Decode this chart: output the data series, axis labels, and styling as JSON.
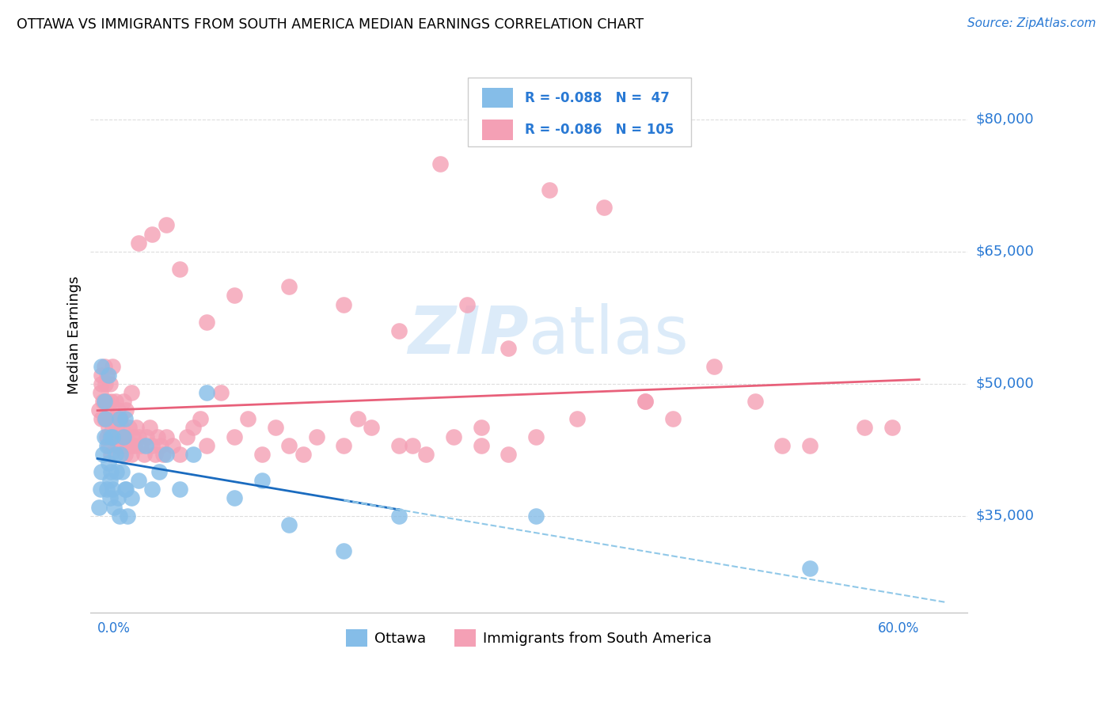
{
  "title": "OTTAWA VS IMMIGRANTS FROM SOUTH AMERICA MEDIAN EARNINGS CORRELATION CHART",
  "source": "Source: ZipAtlas.com",
  "ylabel": "Median Earnings",
  "yticks": [
    35000,
    50000,
    65000,
    80000
  ],
  "ytick_labels": [
    "$35,000",
    "$50,000",
    "$65,000",
    "$80,000"
  ],
  "legend_ottawa_R": "-0.088",
  "legend_ottawa_N": 47,
  "legend_immigrants_R": "-0.086",
  "legend_immigrants_N": 105,
  "ottawa_color": "#85bde8",
  "immigrants_color": "#f4a0b5",
  "ottawa_line_color": "#1a6bbf",
  "immigrants_line_color": "#e8607a",
  "dashed_line_color": "#90c8e8",
  "axis_label_color": "#2979d4",
  "grid_color": "#dddddd",
  "ottawa_x": [
    0.001,
    0.002,
    0.003,
    0.004,
    0.005,
    0.006,
    0.007,
    0.007,
    0.008,
    0.009,
    0.009,
    0.01,
    0.01,
    0.011,
    0.012,
    0.013,
    0.014,
    0.015,
    0.016,
    0.017,
    0.018,
    0.019,
    0.02,
    0.021,
    0.022,
    0.025,
    0.03,
    0.035,
    0.04,
    0.045,
    0.05,
    0.06,
    0.07,
    0.08,
    0.1,
    0.12,
    0.14,
    0.18,
    0.22,
    0.32,
    0.003,
    0.005,
    0.008,
    0.011,
    0.016,
    0.02,
    0.52
  ],
  "ottawa_y": [
    36000,
    38000,
    40000,
    42000,
    44000,
    46000,
    38000,
    43000,
    41000,
    39000,
    37000,
    44000,
    40000,
    38000,
    36000,
    42000,
    40000,
    37000,
    35000,
    42000,
    40000,
    44000,
    46000,
    38000,
    35000,
    37000,
    39000,
    43000,
    38000,
    40000,
    42000,
    38000,
    42000,
    49000,
    37000,
    39000,
    34000,
    31000,
    35000,
    35000,
    52000,
    48000,
    51000,
    44000,
    46000,
    38000,
    29000
  ],
  "immigrants_x": [
    0.001,
    0.002,
    0.003,
    0.003,
    0.004,
    0.005,
    0.005,
    0.006,
    0.007,
    0.007,
    0.008,
    0.008,
    0.009,
    0.009,
    0.01,
    0.01,
    0.011,
    0.012,
    0.013,
    0.014,
    0.015,
    0.016,
    0.017,
    0.018,
    0.019,
    0.02,
    0.021,
    0.022,
    0.023,
    0.024,
    0.025,
    0.026,
    0.027,
    0.028,
    0.03,
    0.032,
    0.034,
    0.036,
    0.038,
    0.04,
    0.042,
    0.044,
    0.046,
    0.048,
    0.05,
    0.055,
    0.06,
    0.065,
    0.07,
    0.075,
    0.08,
    0.09,
    0.1,
    0.11,
    0.12,
    0.13,
    0.14,
    0.15,
    0.16,
    0.18,
    0.2,
    0.22,
    0.24,
    0.26,
    0.28,
    0.3,
    0.32,
    0.35,
    0.4,
    0.5,
    0.003,
    0.005,
    0.007,
    0.009,
    0.011,
    0.013,
    0.015,
    0.017,
    0.019,
    0.021,
    0.025,
    0.03,
    0.04,
    0.05,
    0.06,
    0.08,
    0.1,
    0.14,
    0.18,
    0.22,
    0.3,
    0.4,
    0.42,
    0.27,
    0.52,
    0.56,
    0.58,
    0.25,
    0.33,
    0.37,
    0.45,
    0.48,
    0.19,
    0.23,
    0.28
  ],
  "immigrants_y": [
    47000,
    49000,
    51000,
    46000,
    48000,
    52000,
    46000,
    50000,
    44000,
    48000,
    45000,
    43000,
    46000,
    44000,
    42000,
    48000,
    45000,
    46000,
    44000,
    45000,
    43000,
    46000,
    44000,
    45000,
    43000,
    42000,
    44000,
    43000,
    45000,
    43000,
    42000,
    44000,
    43000,
    45000,
    44000,
    43000,
    42000,
    44000,
    45000,
    43000,
    42000,
    44000,
    43000,
    42000,
    44000,
    43000,
    42000,
    44000,
    45000,
    46000,
    43000,
    49000,
    44000,
    46000,
    42000,
    45000,
    43000,
    42000,
    44000,
    43000,
    45000,
    43000,
    42000,
    44000,
    43000,
    42000,
    44000,
    46000,
    48000,
    43000,
    50000,
    48000,
    51000,
    50000,
    52000,
    48000,
    47000,
    46000,
    48000,
    47000,
    49000,
    66000,
    67000,
    68000,
    63000,
    57000,
    60000,
    61000,
    59000,
    56000,
    54000,
    48000,
    46000,
    59000,
    43000,
    45000,
    45000,
    75000,
    72000,
    70000,
    52000,
    48000,
    46000,
    43000,
    45000
  ]
}
